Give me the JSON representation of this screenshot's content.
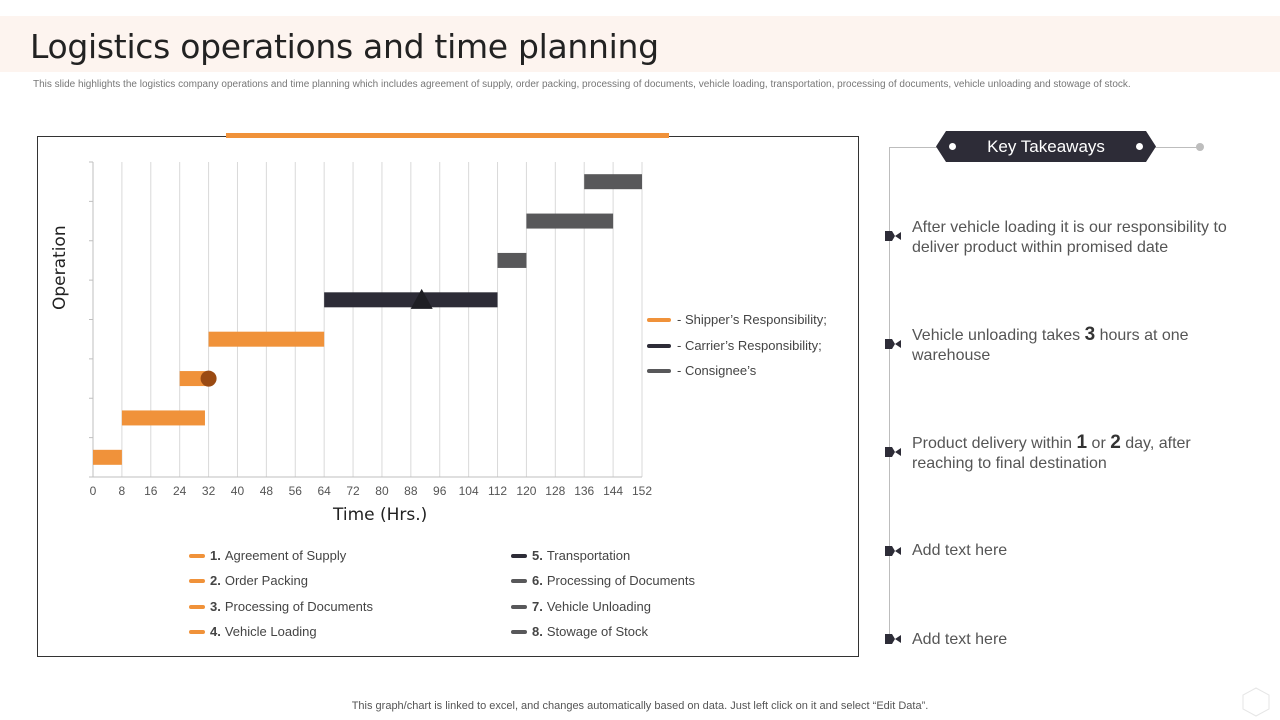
{
  "page": {
    "title": "Logistics operations and time planning",
    "subtitle": "This slide highlights the logistics company operations and time planning  which includes agreement of supply, order packing, processing of documents, vehicle loading, transportation, processing of documents, vehicle unloading and stowage of stock.",
    "footer": "This graph/chart is linked to excel,  and changes automatically based on data. Just left click on it and select “Edit Data”."
  },
  "colors": {
    "shipper": "#f0923a",
    "carrier": "#2d2c37",
    "consignee": "#58585a",
    "accent": "#f0923a",
    "milestone_circle": "#9a4a12"
  },
  "chart_data": {
    "type": "gantt",
    "xlabel": "Time (Hrs.)",
    "ylabel": "Operation",
    "xlim": [
      0,
      152
    ],
    "xticks": [
      "0",
      "8",
      "16",
      "24",
      "32",
      "40",
      "48",
      "56",
      "64",
      "72",
      "80",
      "88",
      "96",
      "104",
      "112",
      "120",
      "128",
      "136",
      "144",
      "152"
    ],
    "tasks": [
      {
        "num": "1.",
        "name": "Agreement of Supply",
        "start": 0,
        "end": 8,
        "group": "shipper"
      },
      {
        "num": "2.",
        "name": "Order Packing",
        "start": 8,
        "end": 31,
        "group": "shipper"
      },
      {
        "num": "3.",
        "name": "Processing of Documents",
        "start": 24,
        "end": 32,
        "group": "shipper"
      },
      {
        "num": "4.",
        "name": "Vehicle Loading",
        "start": 32,
        "end": 64,
        "group": "shipper"
      },
      {
        "num": "5.",
        "name": "Transportation",
        "start": 64,
        "end": 112,
        "group": "carrier"
      },
      {
        "num": "6.",
        "name": "Processing of Documents",
        "start": 112,
        "end": 120,
        "group": "consignee"
      },
      {
        "num": "7.",
        "name": "Vehicle Unloading",
        "start": 120,
        "end": 144,
        "group": "consignee"
      },
      {
        "num": "8.",
        "name": "Stowage of Stock",
        "start": 136,
        "end": 152,
        "group": "consignee"
      }
    ],
    "milestones": [
      {
        "shape": "circle",
        "x": 32,
        "task_index": 2
      },
      {
        "shape": "triangle",
        "x": 91,
        "task_index": 4
      }
    ],
    "responsibility_legend": [
      {
        "label": "- Shipper’s Responsibility;",
        "group": "shipper"
      },
      {
        "label": "- Carrier’s Responsibility;",
        "group": "carrier"
      },
      {
        "label": "- Consignee’s",
        "group": "consignee"
      }
    ]
  },
  "takeaways": {
    "heading": "Key Takeaways",
    "items": [
      {
        "parts": [
          "After vehicle loading it is our responsibility to deliver product within promised date"
        ]
      },
      {
        "parts": [
          "Vehicle unloading takes ",
          "3",
          " hours at one warehouse"
        ]
      },
      {
        "parts": [
          "Product delivery within ",
          "1",
          " or ",
          "2",
          " day, after reaching to final destination"
        ]
      },
      {
        "parts": [
          "Add text here"
        ]
      },
      {
        "parts": [
          "Add text here"
        ]
      }
    ]
  }
}
